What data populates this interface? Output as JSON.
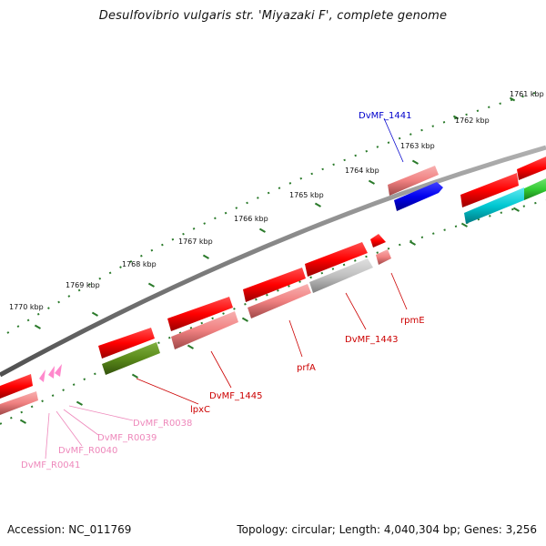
{
  "title": "Desulfovibrio vulgaris str. 'Miyazaki F', complete genome",
  "footer": {
    "accession": "Accession: NC_011769",
    "summary": "Topology: circular; Length: 4,040,304 bp; Genes: 3,256"
  },
  "kbp_labels": [
    "1761 kbp",
    "1762 kbp",
    "1763 kbp",
    "1764 kbp",
    "1765 kbp",
    "1766 kbp",
    "1767 kbp",
    "1768 kbp",
    "1769 kbp",
    "1770 kbp"
  ],
  "gene_labels": {
    "dvmf_1441": "DvMF_1441",
    "rpme": "rpmE",
    "dvmf_1443": "DvMF_1443",
    "prfa": "prfA",
    "dvmf_1445": "DvMF_1445",
    "lpxc": "lpxC",
    "dvmf_r0038": "DvMF_R0038",
    "dvmf_r0039": "DvMF_R0039",
    "dvmf_r0040": "DvMF_R0040",
    "dvmf_r0041": "DvMF_R0041"
  },
  "colors": {
    "gene": "#ff0000",
    "gene_light": "#f08080",
    "blue_gene": "#0000ee",
    "cyan_gene": "#00c8d2",
    "green_gene": "#5a8a1a",
    "bright_green": "#33cc33",
    "gray_gene": "#c0c0c0",
    "rna": "#ff88cc",
    "backbone": "#808080",
    "tick": "#2a7a2a",
    "red_label": "#cc0000",
    "blue_label": "#0000cc",
    "pink_label": "#ee88bb"
  }
}
